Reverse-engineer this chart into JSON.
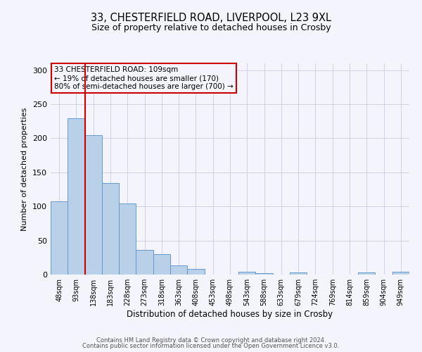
{
  "title1": "33, CHESTERFIELD ROAD, LIVERPOOL, L23 9XL",
  "title2": "Size of property relative to detached houses in Crosby",
  "xlabel": "Distribution of detached houses by size in Crosby",
  "ylabel": "Number of detached properties",
  "bar_labels": [
    "48sqm",
    "93sqm",
    "138sqm",
    "183sqm",
    "228sqm",
    "273sqm",
    "318sqm",
    "363sqm",
    "408sqm",
    "453sqm",
    "498sqm",
    "543sqm",
    "588sqm",
    "633sqm",
    "679sqm",
    "724sqm",
    "769sqm",
    "814sqm",
    "859sqm",
    "904sqm",
    "949sqm"
  ],
  "bar_values": [
    107,
    229,
    205,
    134,
    104,
    36,
    30,
    13,
    8,
    0,
    0,
    4,
    2,
    0,
    3,
    0,
    0,
    0,
    3,
    0,
    4
  ],
  "bar_color": "#b8d0e8",
  "bar_edge_color": "#6699cc",
  "vline_color": "#cc0000",
  "ylim": [
    0,
    310
  ],
  "yticks": [
    0,
    50,
    100,
    150,
    200,
    250,
    300
  ],
  "annotation_line1": "33 CHESTERFIELD ROAD: 109sqm",
  "annotation_line2": "← 19% of detached houses are smaller (170)",
  "annotation_line3": "80% of semi-detached houses are larger (700) →",
  "footer_line1": "Contains HM Land Registry data © Crown copyright and database right 2024.",
  "footer_line2": "Contains public sector information licensed under the Open Government Licence v3.0.",
  "bg_color": "#f4f4fc",
  "grid_color": "#d0d0e8"
}
